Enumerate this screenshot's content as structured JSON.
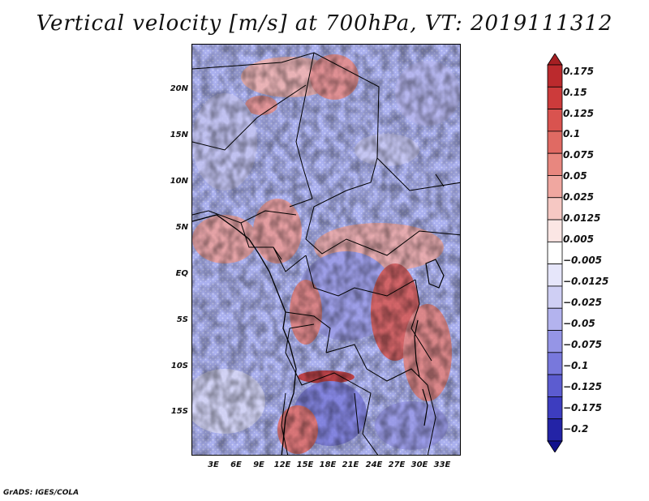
{
  "title": "Vertical velocity [m/s] at 700hPa, VT: 2019111312",
  "credit": "GrADS: IGES/COLA",
  "map": {
    "variable": "Vertical velocity",
    "units": "m/s",
    "level": "700hPa",
    "valid_time": "2019111312",
    "lat_labels": [
      "20N",
      "15N",
      "10N",
      "5N",
      "EQ",
      "5S",
      "10S",
      "15S"
    ],
    "lon_labels": [
      "3E",
      "6E",
      "9E",
      "12E",
      "15E",
      "18E",
      "21E",
      "24E",
      "27E",
      "30E",
      "33E"
    ]
  },
  "colorbar": {
    "labels": [
      "0.175",
      "0.15",
      "0.125",
      "0.1",
      "0.075",
      "0.05",
      "0.025",
      "0.0125",
      "0.005",
      "−0.005",
      "−0.0125",
      "−0.025",
      "−0.05",
      "−0.075",
      "−0.1",
      "−0.125",
      "−0.175",
      "−0.2"
    ],
    "colors": [
      "#a51f22",
      "#bb2a2d",
      "#cc3b3b",
      "#d9534f",
      "#e06a63",
      "#e8877f",
      "#f0a7a0",
      "#f6c8c3",
      "#fbe6e4",
      "#ffffff",
      "#e6e6fa",
      "#cfcff4",
      "#b3b3ee",
      "#9595e6",
      "#7878dc",
      "#5c5cd0",
      "#3d3dbf",
      "#2323a6",
      "#12128c"
    ]
  }
}
